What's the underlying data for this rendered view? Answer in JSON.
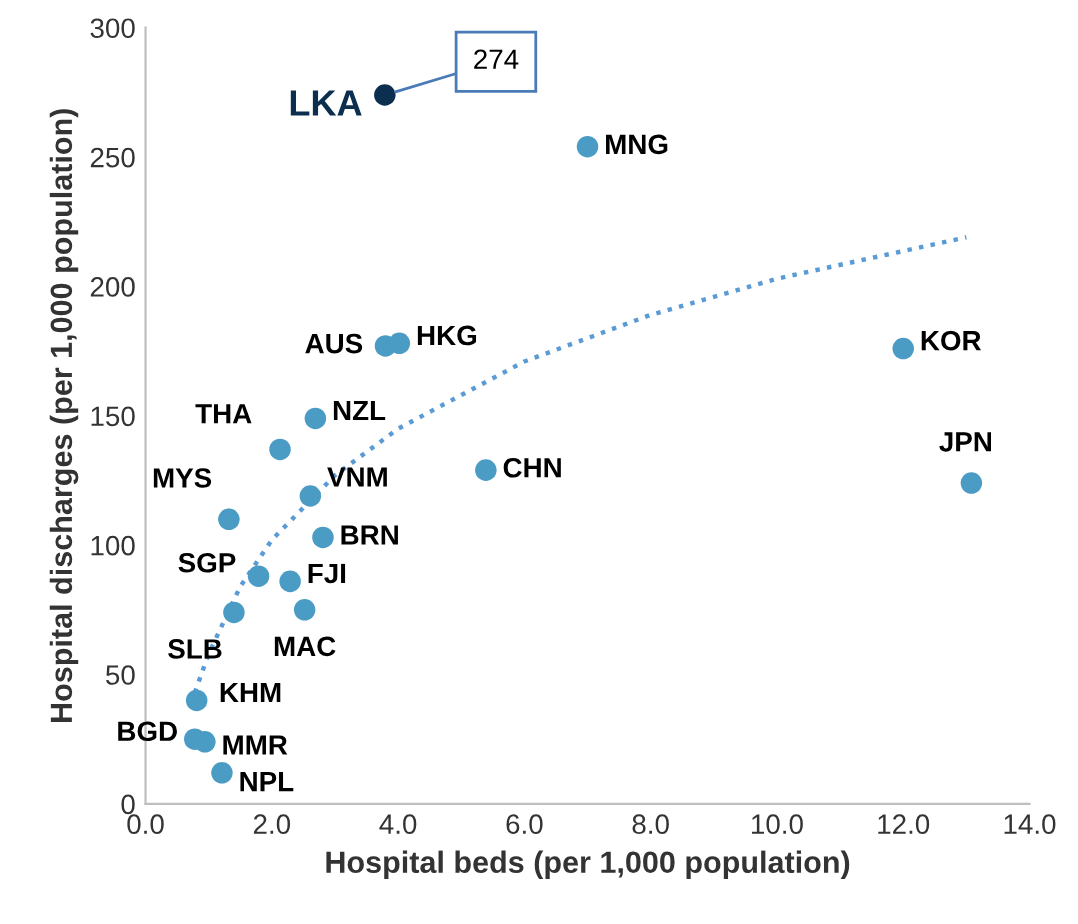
{
  "chart_data": {
    "type": "scatter",
    "xlabel": "Hospital beds (per 1,000 population)",
    "ylabel": "Hospital discharges (per 1,000 population)",
    "xlim": [
      0,
      14
    ],
    "xticks": [
      {
        "value": 0,
        "label": "0.0"
      },
      {
        "value": 2,
        "label": "2.0"
      },
      {
        "value": 4,
        "label": "4.0"
      },
      {
        "value": 6,
        "label": "6.0"
      },
      {
        "value": 8,
        "label": "8.0"
      },
      {
        "value": 10,
        "label": "10.0"
      },
      {
        "value": 12,
        "label": "12.0"
      },
      {
        "value": 14,
        "label": "14.0"
      }
    ],
    "ylim": [
      0,
      300
    ],
    "yticks": [
      0,
      50,
      100,
      150,
      200,
      250,
      300
    ],
    "grid": false,
    "series": [
      {
        "marker": "circle",
        "x": [
          3.79,
          7.0,
          3.8,
          4.02,
          12.0,
          2.13,
          2.69,
          5.39,
          13.08,
          1.32,
          2.61,
          2.81,
          1.79,
          2.29,
          1.4,
          2.52,
          0.81,
          0.78,
          0.94,
          1.21
        ],
        "values": [
          274,
          254,
          177,
          178,
          176,
          137,
          149,
          129,
          124,
          110,
          119,
          103,
          88,
          86,
          74,
          75,
          40,
          25,
          24,
          12
        ],
        "colors": [
          "#0d2f4f",
          "#4a9cc4",
          "#4a9cc4",
          "#4a9cc4",
          "#4a9cc4",
          "#4a9cc4",
          "#4a9cc4",
          "#4a9cc4",
          "#4a9cc4",
          "#4a9cc4",
          "#4a9cc4",
          "#4a9cc4",
          "#4a9cc4",
          "#4a9cc4",
          "#4a9cc4",
          "#4a9cc4",
          "#4a9cc4",
          "#4a9cc4",
          "#4a9cc4",
          "#4a9cc4"
        ]
      },
      {
        "type": "line",
        "line_style": "dotted",
        "color": "#5b9bd5",
        "x": [
          0.78,
          1,
          1.5,
          2,
          3,
          4,
          6,
          8,
          10,
          13
        ],
        "values": [
          43,
          58,
          84,
          102,
          127,
          145,
          171,
          189,
          203,
          219
        ]
      }
    ],
    "annotations": [
      {
        "text": "LKA",
        "x": 3.79,
        "y": 274
      },
      {
        "text": "MNG",
        "x": 7.0,
        "y": 254
      },
      {
        "text": "AUS",
        "x": 3.8,
        "y": 177
      },
      {
        "text": "HKG",
        "x": 4.02,
        "y": 178
      },
      {
        "text": "KOR",
        "x": 12.0,
        "y": 176
      },
      {
        "text": "THA",
        "x": 2.13,
        "y": 137
      },
      {
        "text": "NZL",
        "x": 2.69,
        "y": 149
      },
      {
        "text": "CHN",
        "x": 5.39,
        "y": 129
      },
      {
        "text": "JPN",
        "x": 13.08,
        "y": 124
      },
      {
        "text": "MYS",
        "x": 1.32,
        "y": 110
      },
      {
        "text": "VNM",
        "x": 2.61,
        "y": 119
      },
      {
        "text": "BRN",
        "x": 2.81,
        "y": 103
      },
      {
        "text": "SGP",
        "x": 1.79,
        "y": 88
      },
      {
        "text": "FJI",
        "x": 2.29,
        "y": 86
      },
      {
        "text": "SLB",
        "x": 1.4,
        "y": 74
      },
      {
        "text": "MAC",
        "x": 2.52,
        "y": 75
      },
      {
        "text": "KHM",
        "x": 0.81,
        "y": 40
      },
      {
        "text": "BGD",
        "x": 0.78,
        "y": 25
      },
      {
        "text": "MMR",
        "x": 0.94,
        "y": 24
      },
      {
        "text": "NPL",
        "x": 1.21,
        "y": 12
      },
      {
        "text": "274",
        "x": 3.79,
        "y": 274
      }
    ]
  }
}
